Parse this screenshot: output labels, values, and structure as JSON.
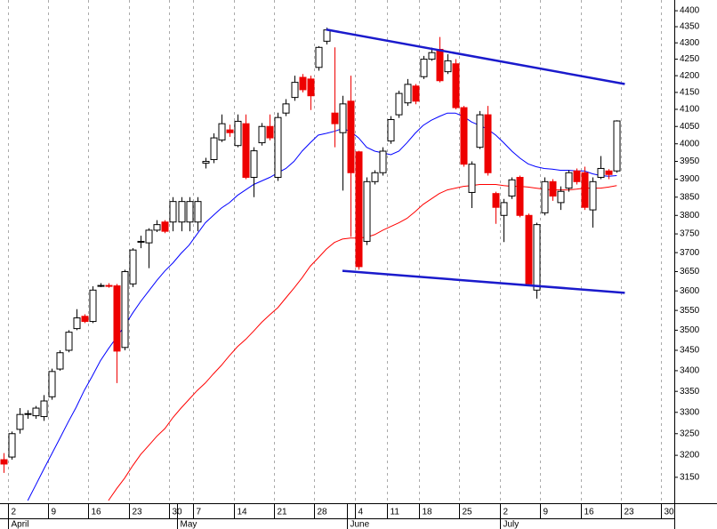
{
  "chart_data": {
    "type": "candlestick",
    "categories": [
      null,
      "2",
      null,
      null,
      null,
      null,
      "9",
      null,
      null,
      null,
      null,
      "16",
      null,
      null,
      null,
      null,
      "23",
      null,
      null,
      null,
      null,
      "30",
      null,
      null,
      "7",
      null,
      null,
      null,
      null,
      "14",
      null,
      null,
      null,
      null,
      "21",
      null,
      null,
      null,
      null,
      "28",
      null,
      null,
      null,
      null,
      "4",
      null,
      null,
      null,
      "11",
      null,
      null,
      null,
      "18",
      null,
      null,
      null,
      null,
      "25",
      null,
      null,
      null,
      null,
      "2",
      null,
      null,
      null,
      null,
      "9",
      null,
      null,
      null,
      null,
      "16",
      null,
      null,
      null,
      null,
      "23",
      null,
      null,
      null,
      null,
      "30",
      null
    ],
    "months": [
      null,
      "April",
      null,
      null,
      null,
      null,
      null,
      null,
      null,
      null,
      null,
      null,
      null,
      null,
      null,
      null,
      null,
      null,
      null,
      null,
      null,
      null,
      "May",
      null,
      null,
      null,
      null,
      null,
      null,
      null,
      null,
      null,
      null,
      null,
      null,
      null,
      null,
      null,
      null,
      null,
      null,
      null,
      null,
      "June",
      null,
      null,
      null,
      null,
      null,
      null,
      null,
      null,
      null,
      null,
      null,
      null,
      null,
      null,
      null,
      null,
      null,
      null,
      "July",
      null,
      null,
      null,
      null,
      null,
      null,
      null,
      null,
      null,
      null,
      null,
      null,
      null,
      null,
      null,
      null,
      null,
      null,
      null,
      null,
      null
    ],
    "open": [
      3190,
      3196,
      3260,
      3295,
      3292,
      3290,
      3337,
      3404,
      3450,
      3504,
      3535,
      3522,
      3612,
      3614,
      3613,
      3457,
      3618,
      3728,
      3726,
      3760,
      3782,
      3782,
      3782,
      3782,
      3782,
      3945,
      3955,
      4011,
      4040,
      3995,
      4058,
      3905,
      4003,
      4050,
      3905,
      4089,
      4135,
      4195,
      4190,
      4225,
      4305,
      4089,
      4032,
      4124,
      3977,
      3730,
      3893,
      3918,
      4008,
      4084,
      4119,
      4169,
      4197,
      4250,
      4280,
      4212,
      4236,
      4105,
      3863,
      3990,
      4084,
      3860,
      3800,
      3853,
      3905,
      3800,
      3602,
      3807,
      3893,
      3835,
      3875,
      3923,
      3918,
      3815,
      3905,
      3923,
      3923,
      null,
      null,
      null,
      null,
      null,
      null,
      null
    ],
    "high": [
      3205,
      3255,
      3310,
      3305,
      3315,
      3341,
      3405,
      3450,
      3500,
      3553,
      3540,
      3612,
      3620,
      3620,
      3618,
      3655,
      3712,
      3745,
      3765,
      3787,
      3787,
      3850,
      3850,
      3850,
      3850,
      3960,
      4030,
      4085,
      4055,
      4085,
      4085,
      3990,
      4060,
      4085,
      4090,
      4130,
      4200,
      4205,
      4200,
      4290,
      4347,
      4286,
      4140,
      4200,
      3980,
      3905,
      3925,
      3990,
      4080,
      4155,
      4190,
      4175,
      4260,
      4285,
      4318,
      4265,
      4250,
      4110,
      3950,
      4095,
      4110,
      3865,
      3845,
      3905,
      3910,
      3805,
      3780,
      3905,
      3900,
      3880,
      3925,
      3930,
      3935,
      3905,
      3965,
      3928,
      4068,
      null,
      null,
      null,
      null,
      null,
      null,
      null
    ],
    "low": [
      3160,
      3190,
      3250,
      3285,
      3285,
      3280,
      3330,
      3400,
      3445,
      3500,
      3518,
      3518,
      3610,
      3608,
      3370,
      3450,
      3610,
      3712,
      3659,
      3755,
      3752,
      3757,
      3757,
      3757,
      3757,
      3930,
      3945,
      4005,
      4020,
      3990,
      3900,
      3850,
      3995,
      4010,
      3895,
      4080,
      4125,
      4150,
      4098,
      4215,
      4295,
      3990,
      3868,
      3742,
      3655,
      3720,
      3885,
      3910,
      4000,
      4075,
      4110,
      4115,
      4190,
      4245,
      4180,
      4205,
      4100,
      3935,
      3820,
      3985,
      3910,
      3777,
      3728,
      3845,
      3795,
      3612,
      3580,
      3800,
      3840,
      3815,
      3865,
      3885,
      3815,
      3767,
      3900,
      3900,
      3918,
      null,
      null,
      null,
      null,
      null,
      null,
      null
    ],
    "close": [
      3180,
      3250,
      3295,
      3297,
      3310,
      3327,
      3398,
      3444,
      3495,
      3531,
      3522,
      3602,
      3614,
      3612,
      3448,
      3650,
      3707,
      3730,
      3760,
      3775,
      3757,
      3838,
      3838,
      3838,
      3838,
      3950,
      4017,
      4058,
      4032,
      4065,
      3905,
      3980,
      4050,
      4017,
      4076,
      4116,
      4180,
      4158,
      4140,
      4286,
      4340,
      4058,
      4116,
      3918,
      3663,
      3893,
      3918,
      3979,
      4070,
      4147,
      4174,
      4124,
      4250,
      4270,
      4185,
      4245,
      4105,
      3942,
      3942,
      4084,
      3918,
      3822,
      3835,
      3898,
      3800,
      3618,
      3775,
      3893,
      3853,
      3866,
      3918,
      3893,
      3822,
      3893,
      3930,
      3913,
      4066,
      null,
      null,
      null,
      null,
      null,
      null,
      null
    ],
    "up_color": "#ffffff",
    "down_color": "#ee0000",
    "moving_averages": [
      {
        "color": "#0000ff",
        "values": [
          null,
          null,
          null,
          3098,
          3133,
          3169,
          3204,
          3240,
          3277,
          3312,
          3352,
          3387,
          3424,
          3454,
          3482,
          3511,
          3543,
          3573,
          3600,
          3627,
          3652,
          3673,
          3698,
          3720,
          3750,
          3780,
          3800,
          3820,
          3835,
          3855,
          3870,
          3885,
          3895,
          3905,
          3918,
          3930,
          3950,
          3979,
          4003,
          4025,
          4030,
          4036,
          4044,
          4036,
          4017,
          3990,
          3979,
          3974,
          3969,
          3979,
          4003,
          4030,
          4053,
          4068,
          4079,
          4089,
          4089,
          4079,
          4063,
          4053,
          4042,
          4025,
          4003,
          3979,
          3959,
          3943,
          3935,
          3930,
          3928,
          3925,
          3925,
          3923,
          3923,
          3915,
          3910,
          3908,
          3910,
          null,
          null,
          null,
          null,
          null,
          null,
          null
        ]
      },
      {
        "color": "#ff0000",
        "values": [
          null,
          null,
          null,
          null,
          null,
          null,
          null,
          null,
          null,
          null,
          null,
          null,
          null,
          3098,
          3124,
          3148,
          3176,
          3202,
          3223,
          3244,
          3262,
          3288,
          3310,
          3331,
          3352,
          3370,
          3392,
          3413,
          3437,
          3459,
          3477,
          3498,
          3520,
          3539,
          3557,
          3582,
          3607,
          3634,
          3664,
          3686,
          3709,
          3727,
          3736,
          3739,
          3739,
          3741,
          3748,
          3760,
          3770,
          3780,
          3792,
          3810,
          3830,
          3845,
          3860,
          3870,
          3875,
          3880,
          3882,
          3885,
          3885,
          3885,
          3882,
          3880,
          3880,
          3878,
          3875,
          3872,
          3870,
          3870,
          3870,
          3872,
          3875,
          3875,
          3875,
          3878,
          3882,
          null,
          null,
          null,
          null,
          null,
          null,
          null
        ]
      }
    ],
    "trendlines": [
      {
        "color": "#1a1acc",
        "x": [
          40,
          77
        ],
        "y": [
          4341,
          4175
        ]
      },
      {
        "color": "#1a1acc",
        "x": [
          42,
          77
        ],
        "y": [
          3652,
          3595
        ]
      }
    ],
    "ylim": [
      3094,
      4434
    ],
    "log_scale": true,
    "grid": "x",
    "yticks": [
      3150,
      3200,
      3250,
      3300,
      3350,
      3400,
      3450,
      3500,
      3550,
      3600,
      3650,
      3700,
      3750,
      3800,
      3850,
      3900,
      3950,
      4000,
      4050,
      4100,
      4150,
      4200,
      4250,
      4300,
      4350,
      4400
    ]
  }
}
